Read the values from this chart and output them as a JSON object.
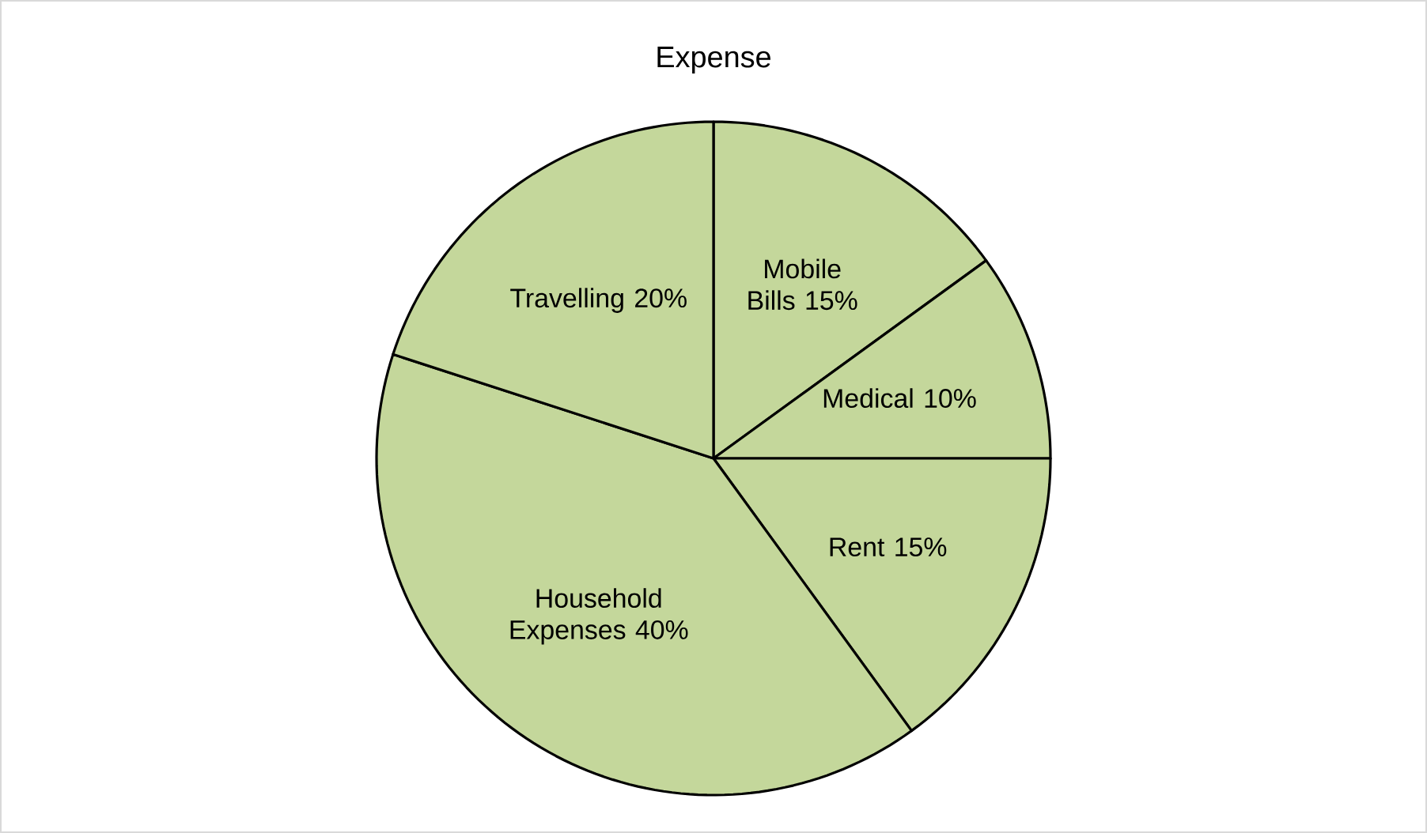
{
  "chart_data": {
    "type": "pie",
    "title": "Expense",
    "categories": [
      "Mobile Bills",
      "Medical",
      "Rent",
      "Household Expenses",
      "Travelling"
    ],
    "values": [
      15,
      10,
      15,
      40,
      20
    ],
    "value_labels": [
      "15%",
      "10%",
      "15%",
      "40%",
      "20%"
    ],
    "colors": [
      "#c4d79b",
      "#c4d79b",
      "#c4d79b",
      "#c4d79b",
      "#c4d79b"
    ]
  }
}
